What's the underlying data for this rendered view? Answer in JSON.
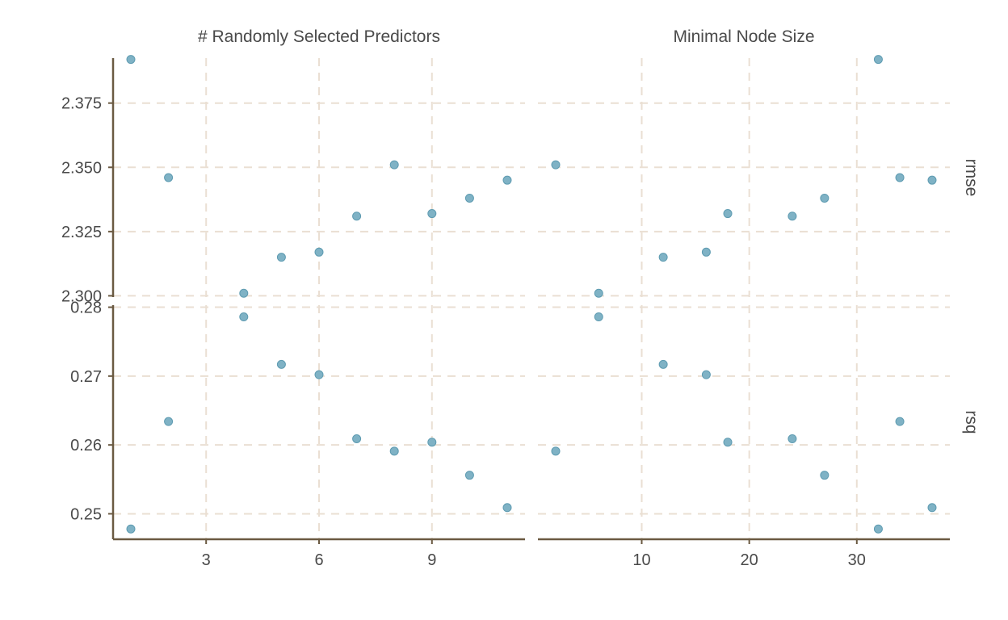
{
  "chart_data": {
    "type": "scatter",
    "title": "",
    "xlabel": "",
    "ylabel": "",
    "grid": true,
    "legend": "none",
    "colors": {
      "point": "#7fb2c5",
      "grid": "#eadfd3",
      "axis": "#6b5a42"
    },
    "facet_columns": [
      {
        "name": "# Randomly Selected Predictors",
        "xlim": [
          1,
          11
        ],
        "x_ticks": [
          3,
          6,
          9
        ]
      },
      {
        "name": "Minimal Node Size",
        "xlim": [
          2,
          37
        ],
        "x_ticks": [
          10,
          20,
          30
        ]
      }
    ],
    "facet_rows": [
      {
        "name": "rmse",
        "ylim": [
          2.2995,
          2.3925
        ],
        "y_ticks": [
          2.3,
          2.325,
          2.35,
          2.375
        ],
        "y_tick_labels": [
          "2.300",
          "2.325",
          "2.350",
          "2.375"
        ]
      },
      {
        "name": "rsq",
        "ylim": [
          0.2463,
          0.2803
        ],
        "y_ticks": [
          0.25,
          0.26,
          0.27,
          0.28
        ],
        "y_tick_labels": [
          "0.25",
          "0.26",
          "0.27",
          "0.28"
        ]
      }
    ],
    "points": [
      {
        "mtry": 1,
        "min_n": 32,
        "rmse": 2.392,
        "rsq": 0.2478
      },
      {
        "mtry": 2,
        "min_n": 34,
        "rmse": 2.346,
        "rsq": 0.2634
      },
      {
        "mtry": 4,
        "min_n": 6,
        "rmse": 2.301,
        "rsq": 0.2786
      },
      {
        "mtry": 5,
        "min_n": 12,
        "rmse": 2.315,
        "rsq": 0.2717
      },
      {
        "mtry": 6,
        "min_n": 16,
        "rmse": 2.317,
        "rsq": 0.2702
      },
      {
        "mtry": 7,
        "min_n": 24,
        "rmse": 2.331,
        "rsq": 0.2609
      },
      {
        "mtry": 8,
        "min_n": 2,
        "rmse": 2.351,
        "rsq": 0.2591
      },
      {
        "mtry": 9,
        "min_n": 18,
        "rmse": 2.332,
        "rsq": 0.2604
      },
      {
        "mtry": 10,
        "min_n": 27,
        "rmse": 2.338,
        "rsq": 0.2556
      },
      {
        "mtry": 11,
        "min_n": 37,
        "rmse": 2.345,
        "rsq": 0.2509
      }
    ]
  }
}
